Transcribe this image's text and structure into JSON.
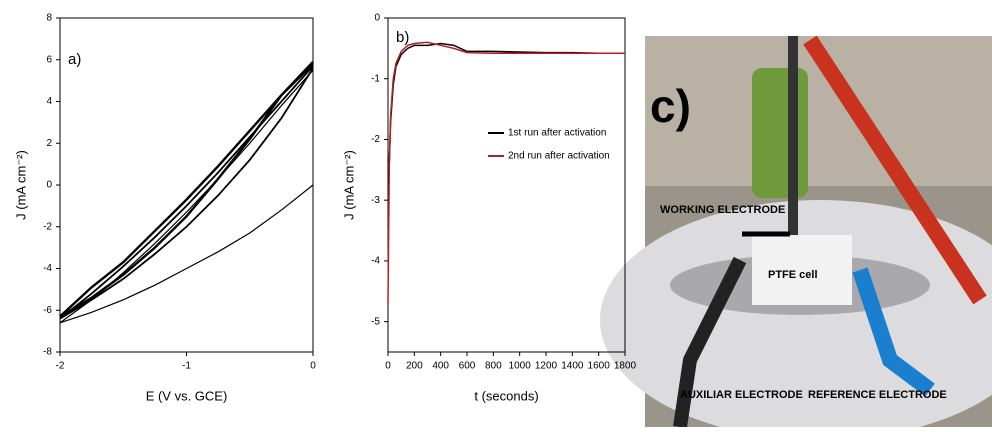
{
  "chart_data": [
    {
      "type": "line",
      "panel_label": "a)",
      "x_label": "E (V vs. GCE)",
      "y_label": "J (mA cm⁻²)",
      "xlim": [
        -2,
        0
      ],
      "xticks": [
        -2,
        -1,
        0
      ],
      "ylim": [
        -8,
        8
      ],
      "yticks": [
        -8,
        -6,
        -4,
        -2,
        0,
        2,
        4,
        6,
        8
      ],
      "series": [
        {
          "color": "#000000",
          "x": [
            0,
            -0.25,
            -0.5,
            -0.75,
            -1,
            -1.25,
            -1.5,
            -1.75,
            -2,
            -1.75,
            -1.5,
            -1.25,
            -1,
            -0.75,
            -0.5,
            -0.25,
            0
          ],
          "values": [
            0,
            -1.2,
            -2.3,
            -3.2,
            -4,
            -4.8,
            -5.5,
            -6.1,
            -6.6,
            -5.5,
            -4.2,
            -2.8,
            -1.3,
            0.3,
            2,
            3.8,
            5.5
          ]
        },
        {
          "color": "#000000",
          "x": [
            0,
            -0.25,
            -0.5,
            -0.75,
            -1,
            -1.25,
            -1.5,
            -1.75,
            -2,
            -1.75,
            -1.5,
            -1.25,
            -1,
            -0.75,
            -0.5,
            -0.25,
            0
          ],
          "values": [
            5.6,
            3.2,
            1.2,
            -0.5,
            -2,
            -3.3,
            -4.5,
            -5.5,
            -6.4,
            -5.2,
            -3.9,
            -2.5,
            -1,
            0.6,
            2.3,
            4,
            5.7
          ]
        },
        {
          "color": "#000000",
          "x": [
            0,
            -0.25,
            -0.5,
            -0.75,
            -1,
            -1.25,
            -1.5,
            -1.75,
            -2,
            -1.75,
            -1.5,
            -1.25,
            -1,
            -0.75,
            -0.5,
            -0.25,
            0
          ],
          "values": [
            5.8,
            4.3,
            2.2,
            0.3,
            -1.5,
            -3,
            -4.3,
            -5.4,
            -6.3,
            -4.9,
            -3.7,
            -2.2,
            -0.7,
            0.9,
            2.6,
            4.3,
            5.9
          ]
        }
      ]
    },
    {
      "type": "line",
      "panel_label": "b)",
      "x_label": "t (seconds)",
      "y_label": "J (mA cm⁻²)",
      "xlim": [
        0,
        1800
      ],
      "xticks": [
        0,
        200,
        400,
        600,
        800,
        1000,
        1200,
        1400,
        1600,
        1800
      ],
      "ylim": [
        -5.5,
        0
      ],
      "yticks": [
        -5,
        -4,
        -3,
        -2,
        -1,
        0
      ],
      "legend": "right",
      "series": [
        {
          "name": "1st run after activation",
          "color": "#000000",
          "x": [
            10,
            20,
            40,
            60,
            100,
            150,
            200,
            300,
            400,
            500,
            600,
            800,
            1000,
            1200,
            1400,
            1600,
            1800
          ],
          "values": [
            -2.4,
            -1.7,
            -1.1,
            -0.8,
            -0.6,
            -0.5,
            -0.45,
            -0.45,
            -0.42,
            -0.45,
            -0.55,
            -0.55,
            -0.56,
            -0.57,
            -0.57,
            -0.58,
            -0.58
          ]
        },
        {
          "name": "2nd run after activation",
          "color": "#b22222",
          "x": [
            0,
            10,
            20,
            40,
            60,
            100,
            150,
            200,
            300,
            400,
            500,
            600,
            800,
            1000,
            1200,
            1400,
            1600,
            1800
          ],
          "values": [
            -4.7,
            -2.4,
            -1.6,
            -1,
            -0.75,
            -0.55,
            -0.45,
            -0.42,
            -0.4,
            -0.45,
            -0.5,
            -0.57,
            -0.58,
            -0.58,
            -0.58,
            -0.58,
            -0.58,
            -0.58
          ]
        }
      ]
    }
  ],
  "photo": {
    "panel_label": "c)",
    "working": "WORKING ELECTRODE",
    "cell": "PTFE cell",
    "auxiliar": "AUXILIAR ELECTRODE",
    "reference": "REFERENCE ELECTRODE"
  }
}
